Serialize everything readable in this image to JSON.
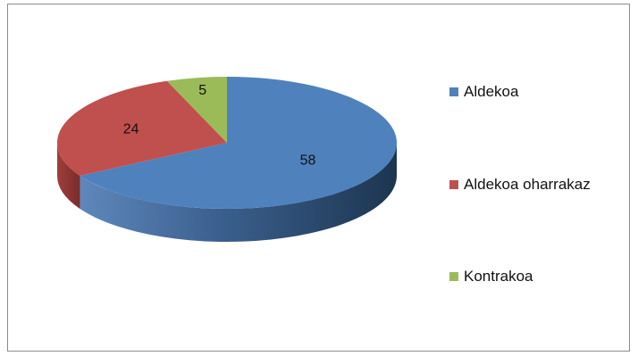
{
  "chart_data": {
    "type": "pie",
    "title": "",
    "is_3d": true,
    "legend_position": "right",
    "categories": [
      "Aldekoa",
      "Aldekoa oharrakaz",
      "Kontrakoa"
    ],
    "values": [
      58,
      24,
      5
    ],
    "data_labels": [
      "58",
      "24",
      "5"
    ],
    "colors": [
      "#4f81bd",
      "#c0504d",
      "#9bbb59"
    ]
  }
}
